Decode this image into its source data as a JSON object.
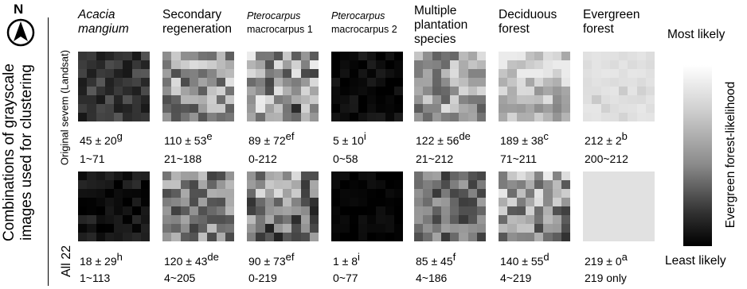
{
  "compass": {
    "letter": "N"
  },
  "left_axis": {
    "line1": "Combinations of grayscale",
    "line2": "images used for clustering"
  },
  "rows": [
    {
      "label": "Original sevem (Landsat)"
    },
    {
      "label": "All 22"
    }
  ],
  "columns": [
    {
      "title": [
        "Acacia",
        "mangium"
      ],
      "italic": true
    },
    {
      "title": [
        "Secondary",
        "regeneration"
      ]
    },
    {
      "title": [
        "Pterocarpus",
        "macrocarpus 1"
      ],
      "italic_word": "Pterocarpus",
      "small": true
    },
    {
      "title": [
        "Pterocarpus",
        "macrocarpus 2"
      ],
      "italic_word": "Pterocarpus",
      "small": true
    },
    {
      "title": [
        "Multiple",
        "plantation",
        "species"
      ]
    },
    {
      "title": [
        "Deciduous",
        "forest"
      ]
    },
    {
      "title": [
        "Evergreen",
        "forest"
      ]
    }
  ],
  "stats": {
    "row1": [
      {
        "value": "45 ± 20",
        "sup": "g",
        "range": "1~71"
      },
      {
        "value": "110 ± 53",
        "sup": "e",
        "range": "21~188"
      },
      {
        "value": "89 ± 72",
        "sup": "ef",
        "range": "0-212"
      },
      {
        "value": "5 ± 10",
        "sup": "i",
        "range": "0~58"
      },
      {
        "value": "122 ± 56",
        "sup": "de",
        "range": "21~212"
      },
      {
        "value": "189 ± 38",
        "sup": "c",
        "range": "71~211"
      },
      {
        "value": "212 ± 2",
        "sup": "b",
        "range": "200~212"
      }
    ],
    "row2": [
      {
        "value": "18 ± 29",
        "sup": "h",
        "range": "1~113"
      },
      {
        "value": "120 ± 43",
        "sup": "de",
        "range": "4~205"
      },
      {
        "value": "90 ± 73",
        "sup": "ef",
        "range": "0-219"
      },
      {
        "value": "1 ± 8",
        "sup": "i",
        "range": "0~77"
      },
      {
        "value": "85 ± 45",
        "sup": "f",
        "range": "4~186"
      },
      {
        "value": "140 ± 55",
        "sup": "d",
        "range": "4~219"
      },
      {
        "value": "219 ± 0",
        "sup": "a",
        "range": "219 only"
      }
    ]
  },
  "legend": {
    "top": "Most likely",
    "bottom": "Least likely",
    "axis_label": "Evergreen forest-likelihood",
    "colors": {
      "top": "#ffffff",
      "bottom": "#000000"
    }
  }
}
